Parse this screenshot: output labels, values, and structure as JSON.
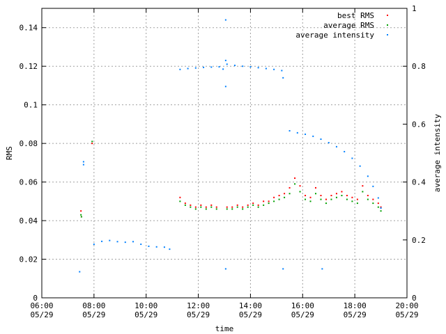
{
  "chart_data": {
    "type": "scatter",
    "title": "",
    "xlabel": "time",
    "ylabel": "RMS",
    "y2label": "average intensity",
    "x_ticks": [
      {
        "value": 6,
        "label_time": "06:00",
        "label_date": "05/29"
      },
      {
        "value": 8,
        "label_time": "08:00",
        "label_date": "05/29"
      },
      {
        "value": 10,
        "label_time": "10:00",
        "label_date": "05/29"
      },
      {
        "value": 12,
        "label_time": "12:00",
        "label_date": "05/29"
      },
      {
        "value": 14,
        "label_time": "14:00",
        "label_date": "05/29"
      },
      {
        "value": 16,
        "label_time": "16:00",
        "label_date": "05/29"
      },
      {
        "value": 18,
        "label_time": "18:00",
        "label_date": "05/29"
      },
      {
        "value": 20,
        "label_time": "20:00",
        "label_date": "05/29"
      }
    ],
    "xlim": [
      6,
      20
    ],
    "ylim": [
      0,
      0.15
    ],
    "y_ticks": [
      {
        "value": 0,
        "label": "0"
      },
      {
        "value": 0.02,
        "label": "0.02"
      },
      {
        "value": 0.04,
        "label": "0.04"
      },
      {
        "value": 0.06,
        "label": "0.06"
      },
      {
        "value": 0.08,
        "label": "0.08"
      },
      {
        "value": 0.1,
        "label": "0.1"
      },
      {
        "value": 0.12,
        "label": "0.12"
      },
      {
        "value": 0.14,
        "label": "0.14"
      }
    ],
    "y2lim": [
      0,
      1
    ],
    "y2_ticks": [
      {
        "value": 0,
        "label": "0"
      },
      {
        "value": 0.2,
        "label": "0.2"
      },
      {
        "value": 0.4,
        "label": "0.4"
      },
      {
        "value": 0.6,
        "label": "0.6"
      },
      {
        "value": 0.8,
        "label": "0.8"
      },
      {
        "value": 1,
        "label": "1"
      }
    ],
    "grid": true,
    "legend_position": "top-right",
    "series": [
      {
        "name": "best RMS",
        "color": "#ff0000",
        "axis": "y",
        "points": [
          [
            7.5,
            0.045
          ],
          [
            7.52,
            0.042
          ],
          [
            7.93,
            0.08
          ],
          [
            11.3,
            0.052
          ],
          [
            11.5,
            0.049
          ],
          [
            11.7,
            0.048
          ],
          [
            11.9,
            0.047
          ],
          [
            12.1,
            0.048
          ],
          [
            12.3,
            0.047
          ],
          [
            12.5,
            0.048
          ],
          [
            12.7,
            0.047
          ],
          [
            13.1,
            0.047
          ],
          [
            13.3,
            0.047
          ],
          [
            13.5,
            0.048
          ],
          [
            13.7,
            0.047
          ],
          [
            13.9,
            0.048
          ],
          [
            14.1,
            0.049
          ],
          [
            14.3,
            0.048
          ],
          [
            14.5,
            0.05
          ],
          [
            14.7,
            0.05
          ],
          [
            14.9,
            0.052
          ],
          [
            15.1,
            0.053
          ],
          [
            15.3,
            0.054
          ],
          [
            15.5,
            0.057
          ],
          [
            15.7,
            0.062
          ],
          [
            15.9,
            0.058
          ],
          [
            16.1,
            0.053
          ],
          [
            16.3,
            0.052
          ],
          [
            16.5,
            0.057
          ],
          [
            16.7,
            0.053
          ],
          [
            16.9,
            0.051
          ],
          [
            17.1,
            0.053
          ],
          [
            17.3,
            0.054
          ],
          [
            17.5,
            0.055
          ],
          [
            17.7,
            0.053
          ],
          [
            17.9,
            0.052
          ],
          [
            18.1,
            0.051
          ],
          [
            18.3,
            0.058
          ],
          [
            18.5,
            0.053
          ],
          [
            18.7,
            0.051
          ],
          [
            18.9,
            0.049
          ],
          [
            19.0,
            0.047
          ]
        ]
      },
      {
        "name": "average RMS",
        "color": "#00a000",
        "axis": "y",
        "points": [
          [
            7.5,
            0.043
          ],
          [
            7.52,
            0.042
          ],
          [
            7.93,
            0.081
          ],
          [
            11.3,
            0.05
          ],
          [
            11.5,
            0.048
          ],
          [
            11.7,
            0.047
          ],
          [
            11.9,
            0.046
          ],
          [
            12.1,
            0.047
          ],
          [
            12.3,
            0.046
          ],
          [
            12.5,
            0.047
          ],
          [
            12.7,
            0.046
          ],
          [
            13.1,
            0.046
          ],
          [
            13.3,
            0.046
          ],
          [
            13.5,
            0.047
          ],
          [
            13.7,
            0.046
          ],
          [
            13.9,
            0.047
          ],
          [
            14.1,
            0.048
          ],
          [
            14.3,
            0.047
          ],
          [
            14.5,
            0.048
          ],
          [
            14.7,
            0.049
          ],
          [
            14.9,
            0.05
          ],
          [
            15.1,
            0.051
          ],
          [
            15.3,
            0.052
          ],
          [
            15.5,
            0.054
          ],
          [
            15.7,
            0.059
          ],
          [
            15.9,
            0.055
          ],
          [
            16.1,
            0.051
          ],
          [
            16.3,
            0.05
          ],
          [
            16.5,
            0.054
          ],
          [
            16.7,
            0.051
          ],
          [
            16.9,
            0.049
          ],
          [
            17.1,
            0.051
          ],
          [
            17.3,
            0.052
          ],
          [
            17.5,
            0.053
          ],
          [
            17.7,
            0.051
          ],
          [
            17.9,
            0.05
          ],
          [
            18.1,
            0.049
          ],
          [
            18.3,
            0.055
          ],
          [
            18.5,
            0.051
          ],
          [
            18.7,
            0.049
          ],
          [
            18.9,
            0.047
          ],
          [
            19.0,
            0.045
          ]
        ]
      },
      {
        "name": "average intensity",
        "color": "#0080ff",
        "axis": "y2",
        "points": [
          [
            7.45,
            0.09
          ],
          [
            7.6,
            0.47
          ],
          [
            7.6,
            0.46
          ],
          [
            8.0,
            0.185
          ],
          [
            8.3,
            0.195
          ],
          [
            8.6,
            0.198
          ],
          [
            8.9,
            0.194
          ],
          [
            9.2,
            0.192
          ],
          [
            9.5,
            0.194
          ],
          [
            9.8,
            0.185
          ],
          [
            10.1,
            0.178
          ],
          [
            10.4,
            0.176
          ],
          [
            10.7,
            0.175
          ],
          [
            10.9,
            0.168
          ],
          [
            11.3,
            0.789
          ],
          [
            11.6,
            0.792
          ],
          [
            11.9,
            0.794
          ],
          [
            12.2,
            0.796
          ],
          [
            12.5,
            0.797
          ],
          [
            12.8,
            0.798
          ],
          [
            12.95,
            0.79
          ],
          [
            13.05,
            0.73
          ],
          [
            13.05,
            0.1
          ],
          [
            13.05,
            0.96
          ],
          [
            13.05,
            0.82
          ],
          [
            13.1,
            0.807
          ],
          [
            13.4,
            0.803
          ],
          [
            13.7,
            0.8
          ],
          [
            14.0,
            0.798
          ],
          [
            14.3,
            0.795
          ],
          [
            14.6,
            0.792
          ],
          [
            14.9,
            0.789
          ],
          [
            15.2,
            0.785
          ],
          [
            15.25,
            0.76
          ],
          [
            15.25,
            0.1
          ],
          [
            15.5,
            0.577
          ],
          [
            15.8,
            0.57
          ],
          [
            16.1,
            0.565
          ],
          [
            16.4,
            0.558
          ],
          [
            16.7,
            0.548
          ],
          [
            17.0,
            0.536
          ],
          [
            17.3,
            0.522
          ],
          [
            17.6,
            0.505
          ],
          [
            17.9,
            0.482
          ],
          [
            18.2,
            0.455
          ],
          [
            18.5,
            0.42
          ],
          [
            18.7,
            0.385
          ],
          [
            18.9,
            0.345
          ],
          [
            19.0,
            0.31
          ],
          [
            16.75,
            0.1
          ]
        ]
      }
    ]
  }
}
